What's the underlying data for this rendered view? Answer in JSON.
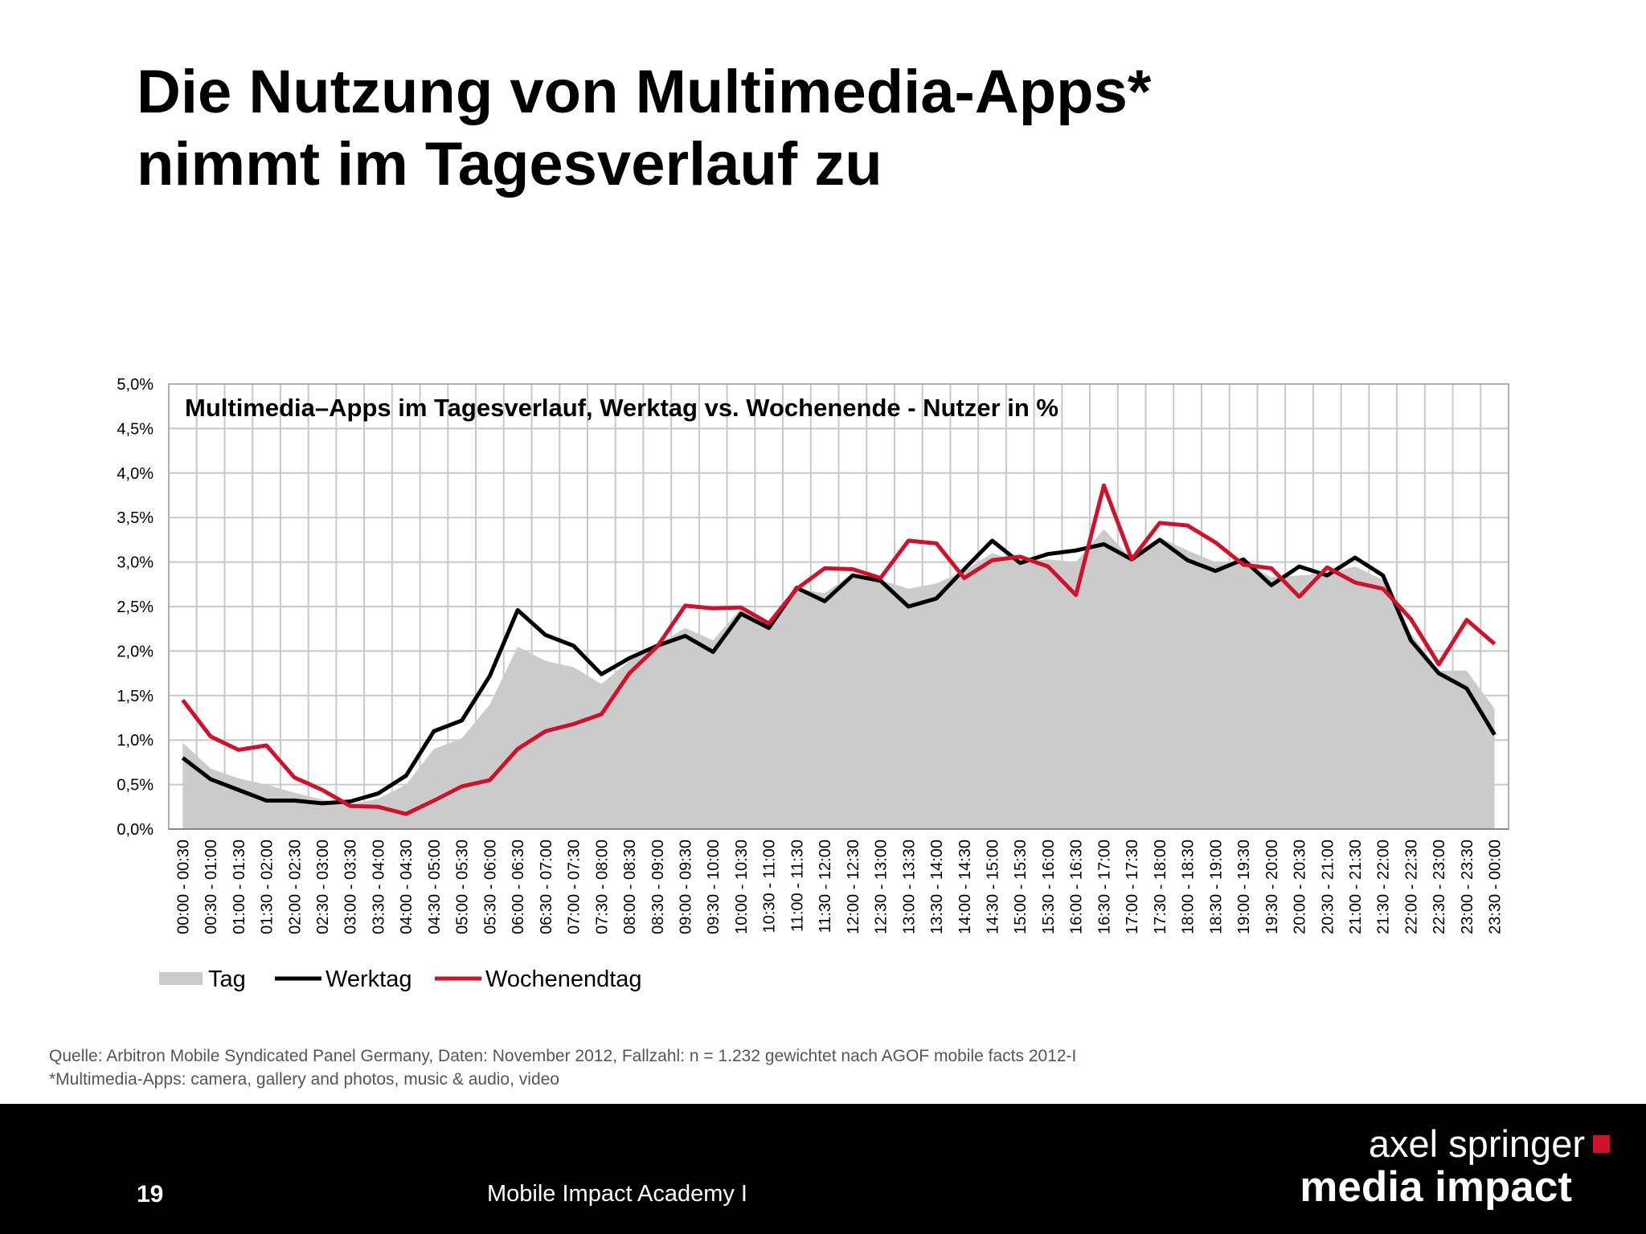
{
  "slide": {
    "title_line1": "Die Nutzung von Multimedia-Apps*",
    "title_line2": "nimmt im Tagesverlauf zu",
    "source": "Quelle: Arbitron Mobile Syndicated Panel Germany, Daten: November 2012, Fallzahl: n = 1.232 gewichtet nach AGOF mobile facts 2012-I",
    "footnote": "*Multimedia-Apps: camera, gallery and photos, music & audio, video",
    "page_number": "19",
    "footer_text": "Mobile Impact Academy I",
    "logo_line1": "axel springer",
    "logo_line2": "media impact"
  },
  "chart_data": {
    "type": "line",
    "title": "Multimedia–Apps im Tagesverlauf, Werktag vs. Wochenende - Nutzer in %",
    "categories": [
      "00:00 - 00:30",
      "00:30 - 01:00",
      "01:00 - 01:30",
      "01:30 - 02:00",
      "02:00 - 02:30",
      "02:30 - 03:00",
      "03:00 - 03:30",
      "03:30 - 04:00",
      "04:00 - 04:30",
      "04:30 - 05:00",
      "05:00 - 05:30",
      "05:30 - 06:00",
      "06:00 - 06:30",
      "06:30 - 07:00",
      "07:00 - 07:30",
      "07:30 - 08:00",
      "08:00 - 08:30",
      "08:30 - 09:00",
      "09:00 - 09:30",
      "09:30 - 10:00",
      "10:00 - 10:30",
      "10:30 - 11:00",
      "11:00 - 11:30",
      "11:30 - 12:00",
      "12:00 - 12:30",
      "12:30 - 13:00",
      "13:00 - 13:30",
      "13:30 - 14:00",
      "14:00 - 14:30",
      "14:30 - 15:00",
      "15:00 - 15:30",
      "15:30 - 16:00",
      "16:00 - 16:30",
      "16:30 - 17:00",
      "17:00 - 17:30",
      "17:30 - 18:00",
      "18:00 - 18:30",
      "18:30 - 19:00",
      "19:00 - 19:30",
      "19:30 - 20:00",
      "20:00 - 20:30",
      "20:30 - 21:00",
      "21:00 - 21:30",
      "21:30 - 22:00",
      "22:00 - 22:30",
      "22:30 - 23:00",
      "23:00 - 23:30",
      "23:30 - 00:00"
    ],
    "series": [
      {
        "name": "Tag",
        "type": "area",
        "color": "#cccbcb",
        "values": [
          0.97,
          0.68,
          0.57,
          0.5,
          0.41,
          0.33,
          0.28,
          0.34,
          0.5,
          0.9,
          1.02,
          1.4,
          2.05,
          1.89,
          1.82,
          1.63,
          1.89,
          2.07,
          2.26,
          2.12,
          2.48,
          2.29,
          2.7,
          2.65,
          2.87,
          2.8,
          2.7,
          2.76,
          2.9,
          3.1,
          3.0,
          3.03,
          3.0,
          3.37,
          3.03,
          3.28,
          3.13,
          3.0,
          3.0,
          2.83,
          2.85,
          2.87,
          2.95,
          2.8,
          2.2,
          1.78,
          1.78,
          1.35
        ]
      },
      {
        "name": "Werktag",
        "type": "line",
        "color": "#000000",
        "values": [
          0.8,
          0.56,
          0.44,
          0.32,
          0.32,
          0.29,
          0.31,
          0.4,
          0.6,
          1.1,
          1.22,
          1.72,
          2.46,
          2.18,
          2.06,
          1.74,
          1.92,
          2.06,
          2.17,
          1.99,
          2.42,
          2.26,
          2.71,
          2.56,
          2.85,
          2.79,
          2.5,
          2.59,
          2.92,
          3.24,
          2.99,
          3.09,
          3.13,
          3.2,
          3.03,
          3.25,
          3.02,
          2.9,
          3.03,
          2.74,
          2.95,
          2.85,
          3.05,
          2.85,
          2.12,
          1.75,
          1.58,
          1.06
        ]
      },
      {
        "name": "Wochenendtag",
        "type": "line",
        "color": "#d0112b",
        "values": [
          1.45,
          1.04,
          0.89,
          0.94,
          0.58,
          0.44,
          0.26,
          0.25,
          0.17,
          0.32,
          0.48,
          0.55,
          0.9,
          1.1,
          1.18,
          1.29,
          1.75,
          2.05,
          2.51,
          2.48,
          2.49,
          2.31,
          2.7,
          2.93,
          2.92,
          2.82,
          3.24,
          3.21,
          2.82,
          3.02,
          3.06,
          2.95,
          2.63,
          3.86,
          3.03,
          3.44,
          3.41,
          3.22,
          2.97,
          2.93,
          2.61,
          2.94,
          2.77,
          2.7,
          2.36,
          1.85,
          2.35,
          2.08
        ]
      }
    ],
    "ylim": [
      0,
      5
    ],
    "yticks": [
      {
        "value": 0,
        "label": "0,0%"
      },
      {
        "value": 0.5,
        "label": "0,5%"
      },
      {
        "value": 1,
        "label": "1,0%"
      },
      {
        "value": 1.5,
        "label": "1,5%"
      },
      {
        "value": 2,
        "label": "2,0%"
      },
      {
        "value": 2.5,
        "label": "2,5%"
      },
      {
        "value": 3,
        "label": "3,0%"
      },
      {
        "value": 3.5,
        "label": "3,5%"
      },
      {
        "value": 4,
        "label": "4,0%"
      },
      {
        "value": 4.5,
        "label": "4,5%"
      },
      {
        "value": 5,
        "label": "5,0%"
      }
    ],
    "grid": true,
    "legend": "bottom-left"
  }
}
